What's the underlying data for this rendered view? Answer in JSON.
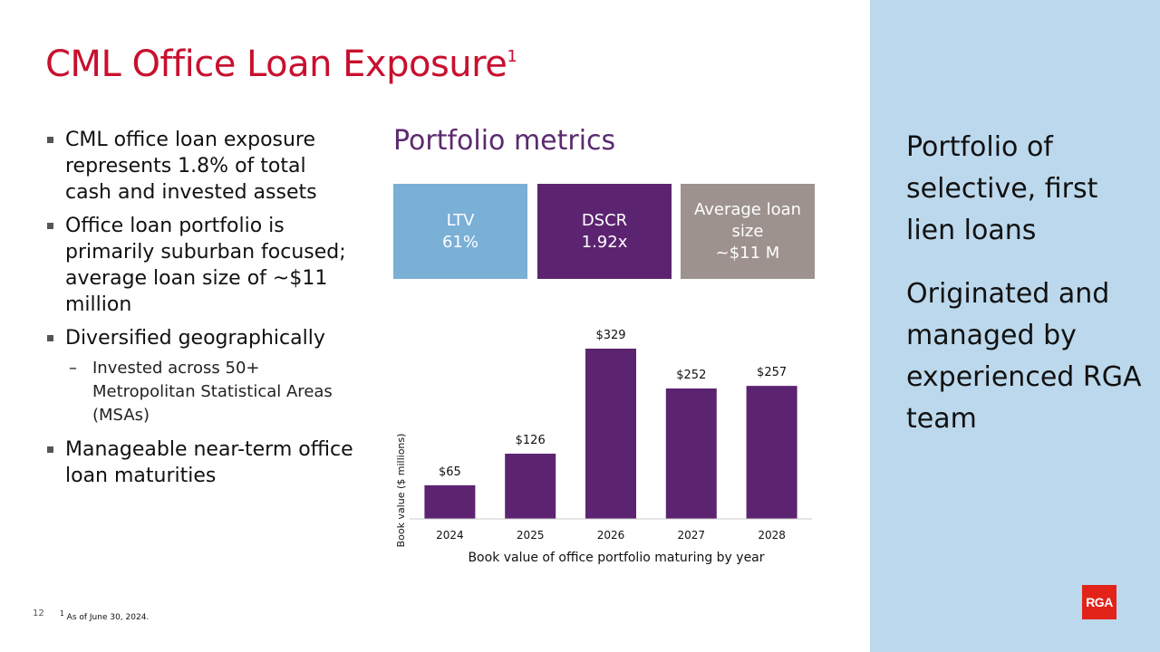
{
  "title": {
    "text": "CML Office Loan Exposure",
    "sup": "1"
  },
  "bullets": [
    "CML office loan exposure represents 1.8% of total cash and invested assets",
    "Office loan portfolio is primarily suburban focused; average loan size of ~$11 million",
    "Diversified geographically",
    "Manageable near-term office loan maturities"
  ],
  "sub_bullet": {
    "dash": "–",
    "text": "Invested across 50+ Metropolitan Statistical Areas (MSAs)"
  },
  "portfolio_metrics": {
    "title": "Portfolio metrics",
    "ltv": {
      "label": "LTV",
      "value": "61%",
      "color": "#7aafd6"
    },
    "dscr": {
      "label": "DSCR",
      "value": "1.92x",
      "color": "#5c2470"
    },
    "avg": {
      "label": "Average loan size",
      "value": "~$11 M",
      "color": "#9d928e"
    }
  },
  "chart_data": {
    "type": "bar",
    "categories": [
      "2024",
      "2025",
      "2026",
      "2027",
      "2028"
    ],
    "values": [
      65,
      126,
      329,
      252,
      257
    ],
    "data_labels": [
      "$65",
      "$126",
      "$329",
      "$252",
      "$257"
    ],
    "ylabel": "Book value ($ millions)",
    "xlabel": "Book value of office portfolio maturing by year",
    "ylim": [
      0,
      329
    ],
    "bar_color": "#5c2470",
    "grid": false
  },
  "sidebar": {
    "text1": "Portfolio of selective, first lien loans",
    "text2": "Originated and managed by experienced RGA team",
    "color": "#bcd8ec"
  },
  "footer": {
    "page_number": "12",
    "footnote_mark": "1",
    "footnote": "As of June 30, 2024."
  },
  "logo": {
    "text": "RGA",
    "color": "#e2231a"
  }
}
